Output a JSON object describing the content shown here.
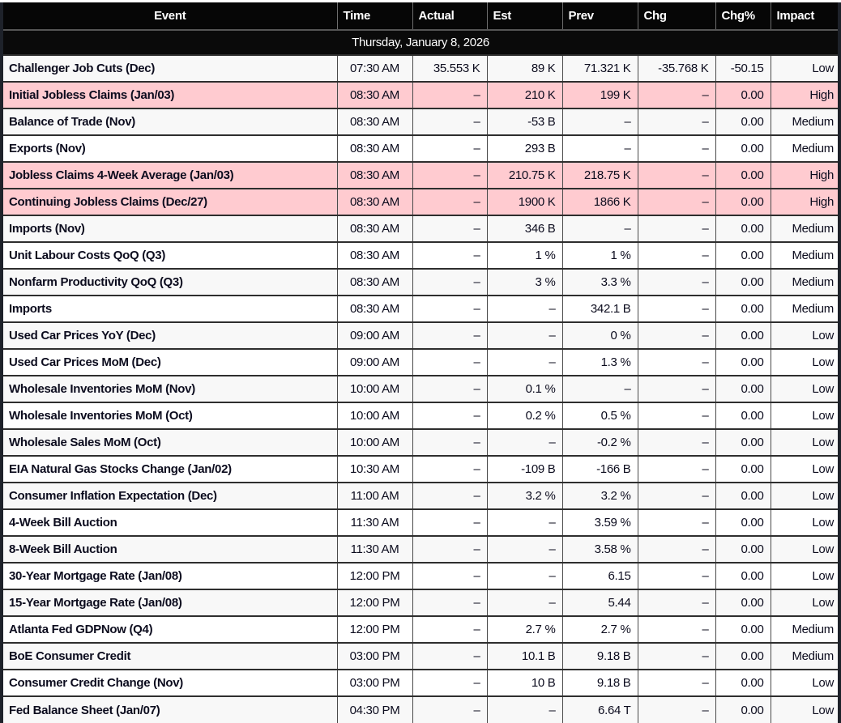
{
  "table": {
    "date_header": "Thursday, January 8, 2026",
    "columns": [
      "Event",
      "Time",
      "Actual",
      "Est",
      "Prev",
      "Chg",
      "Chg%",
      "Impact"
    ],
    "rows": [
      {
        "event": "Challenger Job Cuts (Dec)",
        "time": "07:30 AM",
        "actual": "35.553 K",
        "est": "89 K",
        "prev": "71.321 K",
        "chg": "-35.768 K",
        "chg_pct": "-50.15",
        "impact": "Low"
      },
      {
        "event": "Initial Jobless Claims (Jan/03)",
        "time": "08:30 AM",
        "actual": "–",
        "est": "210 K",
        "prev": "199 K",
        "chg": "–",
        "chg_pct": "0.00",
        "impact": "High"
      },
      {
        "event": "Balance of Trade (Nov)",
        "time": "08:30 AM",
        "actual": "–",
        "est": "-53 B",
        "prev": "–",
        "chg": "–",
        "chg_pct": "0.00",
        "impact": "Medium"
      },
      {
        "event": "Exports (Nov)",
        "time": "08:30 AM",
        "actual": "–",
        "est": "293 B",
        "prev": "–",
        "chg": "–",
        "chg_pct": "0.00",
        "impact": "Medium"
      },
      {
        "event": "Jobless Claims 4-Week Average (Jan/03)",
        "time": "08:30 AM",
        "actual": "–",
        "est": "210.75 K",
        "prev": "218.75 K",
        "chg": "–",
        "chg_pct": "0.00",
        "impact": "High"
      },
      {
        "event": "Continuing Jobless Claims (Dec/27)",
        "time": "08:30 AM",
        "actual": "–",
        "est": "1900 K",
        "prev": "1866 K",
        "chg": "–",
        "chg_pct": "0.00",
        "impact": "High"
      },
      {
        "event": "Imports (Nov)",
        "time": "08:30 AM",
        "actual": "–",
        "est": "346 B",
        "prev": "–",
        "chg": "–",
        "chg_pct": "0.00",
        "impact": "Medium"
      },
      {
        "event": "Unit Labour Costs QoQ (Q3)",
        "time": "08:30 AM",
        "actual": "–",
        "est": "1 %",
        "prev": "1 %",
        "chg": "–",
        "chg_pct": "0.00",
        "impact": "Medium"
      },
      {
        "event": "Nonfarm Productivity QoQ (Q3)",
        "time": "08:30 AM",
        "actual": "–",
        "est": "3 %",
        "prev": "3.3 %",
        "chg": "–",
        "chg_pct": "0.00",
        "impact": "Medium"
      },
      {
        "event": "Imports",
        "time": "08:30 AM",
        "actual": "–",
        "est": "–",
        "prev": "342.1 B",
        "chg": "–",
        "chg_pct": "0.00",
        "impact": "Medium"
      },
      {
        "event": "Used Car Prices YoY (Dec)",
        "time": "09:00 AM",
        "actual": "–",
        "est": "–",
        "prev": "0 %",
        "chg": "–",
        "chg_pct": "0.00",
        "impact": "Low"
      },
      {
        "event": "Used Car Prices MoM (Dec)",
        "time": "09:00 AM",
        "actual": "–",
        "est": "–",
        "prev": "1.3 %",
        "chg": "–",
        "chg_pct": "0.00",
        "impact": "Low"
      },
      {
        "event": "Wholesale Inventories MoM (Nov)",
        "time": "10:00 AM",
        "actual": "–",
        "est": "0.1 %",
        "prev": "–",
        "chg": "–",
        "chg_pct": "0.00",
        "impact": "Low"
      },
      {
        "event": "Wholesale Inventories MoM (Oct)",
        "time": "10:00 AM",
        "actual": "–",
        "est": "0.2 %",
        "prev": "0.5 %",
        "chg": "–",
        "chg_pct": "0.00",
        "impact": "Low"
      },
      {
        "event": "Wholesale Sales MoM (Oct)",
        "time": "10:00 AM",
        "actual": "–",
        "est": "–",
        "prev": "-0.2 %",
        "chg": "–",
        "chg_pct": "0.00",
        "impact": "Low"
      },
      {
        "event": "EIA Natural Gas Stocks Change (Jan/02)",
        "time": "10:30 AM",
        "actual": "–",
        "est": "-109 B",
        "prev": "-166 B",
        "chg": "–",
        "chg_pct": "0.00",
        "impact": "Low"
      },
      {
        "event": "Consumer Inflation Expectation (Dec)",
        "time": "11:00 AM",
        "actual": "–",
        "est": "3.2 %",
        "prev": "3.2 %",
        "chg": "–",
        "chg_pct": "0.00",
        "impact": "Low"
      },
      {
        "event": "4-Week Bill Auction",
        "time": "11:30 AM",
        "actual": "–",
        "est": "–",
        "prev": "3.59 %",
        "chg": "–",
        "chg_pct": "0.00",
        "impact": "Low"
      },
      {
        "event": "8-Week Bill Auction",
        "time": "11:30 AM",
        "actual": "–",
        "est": "–",
        "prev": "3.58 %",
        "chg": "–",
        "chg_pct": "0.00",
        "impact": "Low"
      },
      {
        "event": "30-Year Mortgage Rate (Jan/08)",
        "time": "12:00 PM",
        "actual": "–",
        "est": "–",
        "prev": "6.15",
        "chg": "–",
        "chg_pct": "0.00",
        "impact": "Low"
      },
      {
        "event": "15-Year Mortgage Rate (Jan/08)",
        "time": "12:00 PM",
        "actual": "–",
        "est": "–",
        "prev": "5.44",
        "chg": "–",
        "chg_pct": "0.00",
        "impact": "Low"
      },
      {
        "event": "Atlanta Fed GDPNow (Q4)",
        "time": "12:00 PM",
        "actual": "–",
        "est": "2.7 %",
        "prev": "2.7 %",
        "chg": "–",
        "chg_pct": "0.00",
        "impact": "Medium"
      },
      {
        "event": "BoE Consumer Credit",
        "time": "03:00 PM",
        "actual": "–",
        "est": "10.1 B",
        "prev": "9.18 B",
        "chg": "–",
        "chg_pct": "0.00",
        "impact": "Medium"
      },
      {
        "event": "Consumer Credit Change (Nov)",
        "time": "03:00 PM",
        "actual": "–",
        "est": "10 B",
        "prev": "9.18 B",
        "chg": "–",
        "chg_pct": "0.00",
        "impact": "Low"
      },
      {
        "event": "Fed Balance Sheet (Jan/07)",
        "time": "04:30 PM",
        "actual": "–",
        "est": "–",
        "prev": "6.64 T",
        "chg": "–",
        "chg_pct": "0.00",
        "impact": "Low"
      }
    ]
  },
  "colors": {
    "high_impact_row": "#ffcbd0",
    "stripe_row": "#f8f8f8",
    "header_bg": "#060606",
    "page_frame": "#1e222a"
  }
}
